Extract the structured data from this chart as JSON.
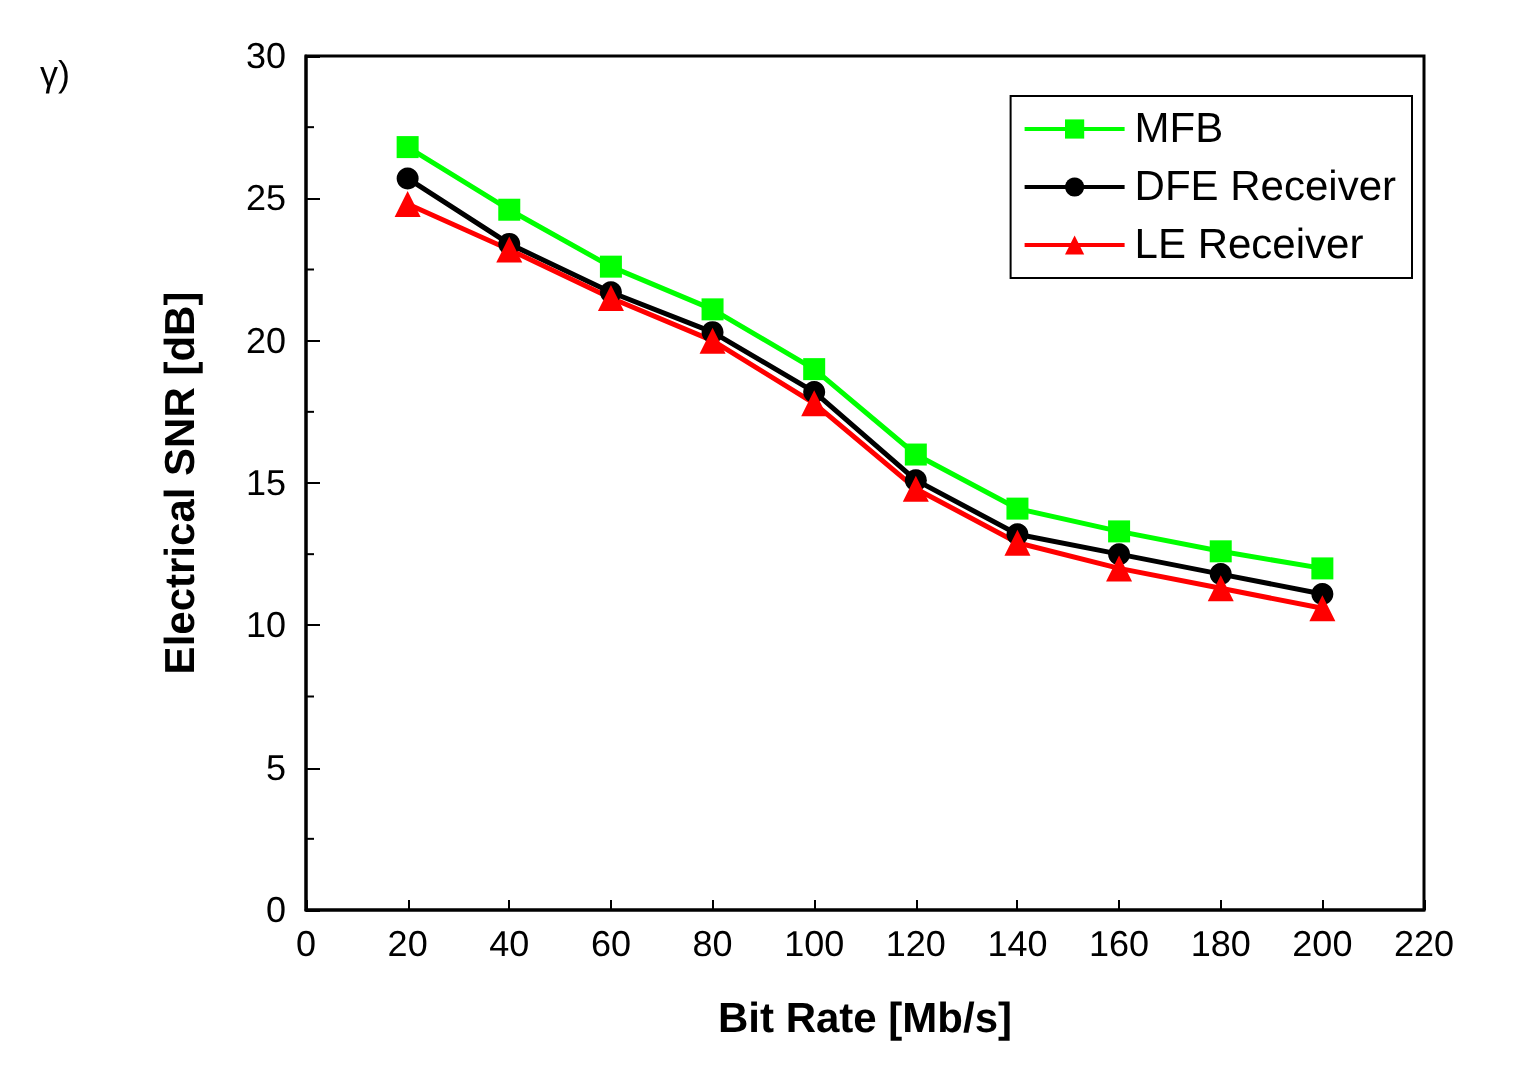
{
  "chart_data": {
    "type": "line",
    "xlabel": "Bit Rate [Mb/s]",
    "ylabel": "Electrical SNR [dB]",
    "annotations": [
      "γ)"
    ],
    "x": [
      20,
      40,
      60,
      80,
      100,
      120,
      140,
      160,
      180,
      200
    ],
    "series": [
      {
        "name": "MFB",
        "color": "#00ff00",
        "marker": "square",
        "values": [
          26.8,
          24.6,
          22.6,
          21.1,
          19.0,
          16.0,
          14.1,
          13.3,
          12.6,
          12.0
        ]
      },
      {
        "name": "DFE Receiver",
        "color": "#000000",
        "marker": "circle",
        "values": [
          25.7,
          23.4,
          21.7,
          20.3,
          18.2,
          15.1,
          13.2,
          12.5,
          11.8,
          11.1
        ]
      },
      {
        "name": "LE Receiver",
        "color": "#ff0000",
        "marker": "triangle",
        "values": [
          24.8,
          23.2,
          21.5,
          20.0,
          17.8,
          14.8,
          12.9,
          12.0,
          11.3,
          10.6
        ]
      }
    ],
    "xlim": [
      0,
      220
    ],
    "xticks": [
      0,
      20,
      40,
      60,
      80,
      100,
      120,
      140,
      160,
      180,
      200,
      220
    ],
    "ylim": [
      0,
      30
    ],
    "yticks": [
      0,
      5,
      10,
      15,
      20,
      25,
      30
    ],
    "grid": false,
    "legend": "top right",
    "line_style": "solid"
  }
}
